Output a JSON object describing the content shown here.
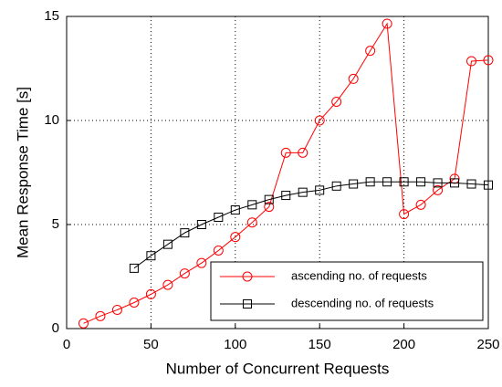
{
  "chart_data": {
    "type": "line",
    "xlabel": "Number of Concurrent Requests",
    "ylabel": "Mean Response Time [s]",
    "xlim": [
      0,
      250
    ],
    "xticks": [
      0,
      50,
      100,
      150,
      200,
      250
    ],
    "ylim": [
      0,
      15
    ],
    "yticks": [
      0,
      5,
      10,
      15
    ],
    "grid": true,
    "legend": "lower right",
    "series": [
      {
        "name": "ascending no. of requests",
        "color": "#ff0000",
        "marker": "circle",
        "x": [
          10,
          20,
          30,
          40,
          50,
          60,
          70,
          80,
          90,
          100,
          110,
          120,
          130,
          140,
          150,
          160,
          170,
          180,
          190,
          200,
          210,
          220,
          230,
          240,
          250
        ],
        "values": [
          0.25,
          0.6,
          0.9,
          1.25,
          1.65,
          2.1,
          2.65,
          3.15,
          3.75,
          4.4,
          5.1,
          5.85,
          8.45,
          8.45,
          10.0,
          10.9,
          12.0,
          13.35,
          14.65,
          5.5,
          5.95,
          6.65,
          7.2,
          12.85,
          12.9
        ]
      },
      {
        "name": "descending no. of requests",
        "color": "#000000",
        "marker": "square",
        "x": [
          40,
          50,
          60,
          70,
          80,
          90,
          100,
          110,
          120,
          130,
          140,
          150,
          160,
          170,
          180,
          190,
          200,
          210,
          220,
          230,
          240,
          250
        ],
        "values": [
          2.9,
          3.5,
          4.05,
          4.6,
          5.0,
          5.35,
          5.7,
          5.95,
          6.2,
          6.4,
          6.55,
          6.65,
          6.85,
          6.95,
          7.05,
          7.05,
          7.05,
          7.05,
          7.0,
          7.0,
          6.95,
          6.9
        ]
      }
    ]
  }
}
